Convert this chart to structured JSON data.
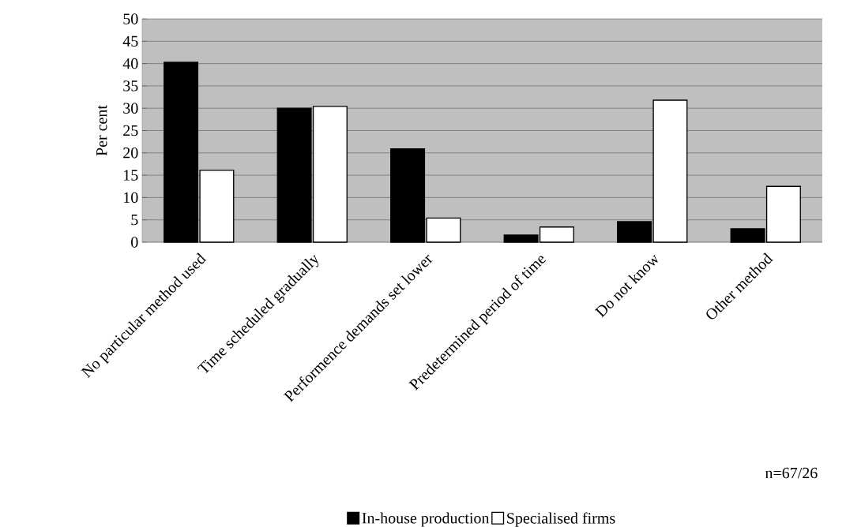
{
  "chart_data": {
    "type": "bar",
    "ylabel": "Per cent",
    "categories": [
      "No particular method used",
      "Time scheduled gradually",
      "Performence demands set lower",
      "Predetermined period of time",
      "Do not know",
      "Other method"
    ],
    "series": [
      {
        "name": "In-house production",
        "color": "#000000",
        "values": [
          40.3,
          30,
          20.9,
          1.6,
          4.6,
          3
        ]
      },
      {
        "name": "Specialised firms",
        "color": "#ffffff",
        "values": [
          16.1,
          30.4,
          5.4,
          3.4,
          31.8,
          12.5
        ]
      }
    ],
    "ylim": [
      0,
      50
    ],
    "yticks": [
      0,
      5,
      10,
      15,
      20,
      25,
      30,
      35,
      40,
      45,
      50
    ],
    "grid": "y",
    "legend": "bottom",
    "annotations": [
      "n=67/26"
    ]
  }
}
